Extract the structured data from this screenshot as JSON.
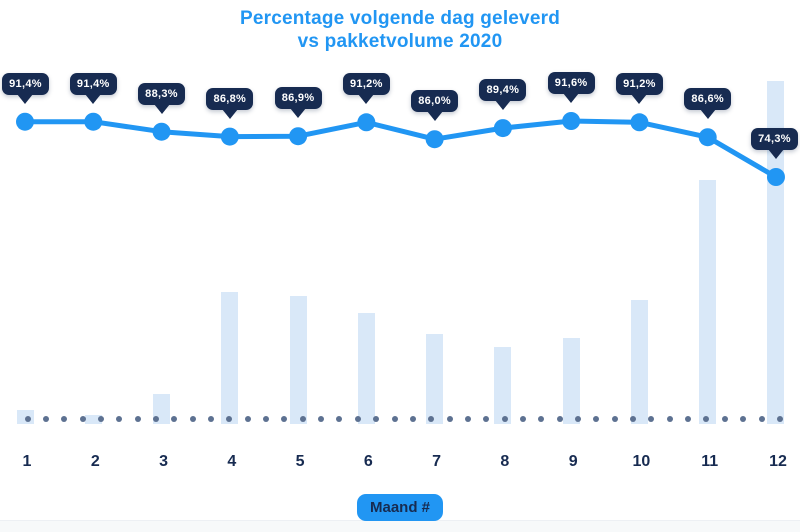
{
  "title": {
    "line1": "Percentage volgende dag geleverd",
    "line2": "vs pakketvolume 2020"
  },
  "x_axis": {
    "title_badge": "Maand #",
    "ticks": [
      "1",
      "2",
      "3",
      "4",
      "5",
      "6",
      "7",
      "8",
      "9",
      "10",
      "11",
      "12"
    ]
  },
  "chart_data": {
    "type": "combo (line over bars)",
    "title": "Percentage volgende dag geleverd vs pakketvolume 2020",
    "xlabel": "Maand #",
    "ylabel": "",
    "categories": [
      1,
      2,
      3,
      4,
      5,
      6,
      7,
      8,
      9,
      10,
      11,
      12
    ],
    "series": [
      {
        "name": "Percentage volgende dag geleverd",
        "type": "line",
        "unit": "%",
        "values": [
          91.4,
          91.4,
          88.3,
          86.8,
          86.9,
          91.2,
          86.0,
          89.4,
          91.6,
          91.2,
          86.6,
          74.3
        ],
        "point_labels": [
          "91,4%",
          "91,4%",
          "88,3%",
          "86,8%",
          "86,9%",
          "91,2%",
          "86,0%",
          "89,4%",
          "91,6%",
          "91,2%",
          "86,6%",
          "74,3%"
        ],
        "color": "#2196f3"
      },
      {
        "name": "Pakketvolume 2020",
        "type": "bar",
        "unit": "relative volume index (no value axis shown, max month = 100)",
        "values": [
          4.1,
          2.6,
          8.7,
          38.5,
          37.3,
          32.4,
          26.2,
          22.4,
          25.1,
          36.2,
          71.1,
          100
        ],
        "color": "#d9e8f8"
      }
    ],
    "legend": "none",
    "grid": false,
    "baseline": "dotted horizontal line of gray-blue dots at x-axis",
    "ylim_line_pct": [
      70,
      95
    ]
  },
  "colors": {
    "accent_blue": "#2196f3",
    "navy": "#172b51",
    "bar_fill": "#d9e8f8",
    "baseline_dot": "#5d7191",
    "background": "#ffffff",
    "footer_strip": "#f7f9fa"
  }
}
